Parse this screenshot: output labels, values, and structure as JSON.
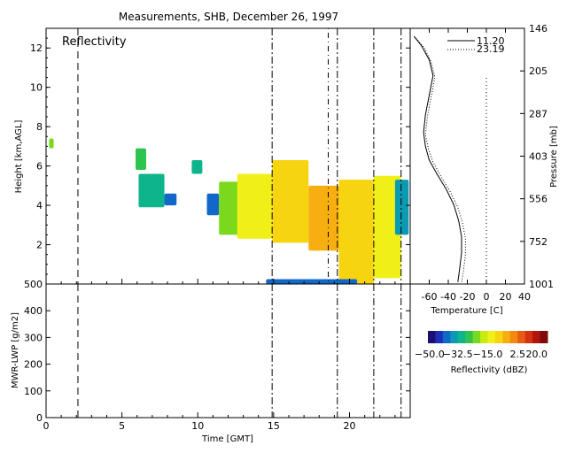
{
  "chart_data": [
    {
      "type": "heatmap",
      "name": "reflectivity-time-height",
      "title": "Measurements, SHB, December 26, 1997",
      "panel_label": "Reflectivity",
      "xlabel": "",
      "ylabel": "Height [km,AGL]",
      "xlim": [
        0,
        24
      ],
      "ylim": [
        0,
        13
      ],
      "x_ticks": [
        0,
        5,
        10,
        15,
        20
      ],
      "y_ticks": [
        2,
        4,
        6,
        8,
        10,
        12
      ],
      "y_tick_labels": [
        "2",
        "4",
        "6",
        "8",
        "10",
        "12"
      ],
      "sounding_times": [
        2.1,
        14.9,
        19.2,
        21.6,
        23.4
      ],
      "dash_dot_time": 18.6,
      "echoes": [
        {
          "x": [
            0.2,
            0.5
          ],
          "y": [
            6.9,
            7.4
          ],
          "dbz": -22
        },
        {
          "x": [
            5.9,
            6.6
          ],
          "y": [
            5.8,
            6.9
          ],
          "dbz": -28
        },
        {
          "x": [
            6.1,
            7.8
          ],
          "y": [
            3.9,
            5.6
          ],
          "dbz": -32
        },
        {
          "x": [
            7.8,
            8.6
          ],
          "y": [
            4.0,
            4.6
          ],
          "dbz": -40
        },
        {
          "x": [
            9.6,
            10.3
          ],
          "y": [
            5.6,
            6.3
          ],
          "dbz": -30
        },
        {
          "x": [
            10.6,
            11.4
          ],
          "y": [
            3.5,
            4.6
          ],
          "dbz": -40
        },
        {
          "x": [
            11.4,
            13.2
          ],
          "y": [
            2.5,
            5.2
          ],
          "dbz": -22
        },
        {
          "x": [
            12.6,
            14.9
          ],
          "y": [
            2.3,
            5.6
          ],
          "dbz": -12
        },
        {
          "x": [
            14.9,
            17.3
          ],
          "y": [
            2.1,
            6.3
          ],
          "dbz": -8
        },
        {
          "x": [
            17.3,
            19.3
          ],
          "y": [
            1.7,
            5.0
          ],
          "dbz": -6
        },
        {
          "x": [
            19.3,
            21.6
          ],
          "y": [
            0.0,
            5.3
          ],
          "dbz": -10
        },
        {
          "x": [
            21.6,
            23.4
          ],
          "y": [
            0.3,
            5.5
          ],
          "dbz": -14
        },
        {
          "x": [
            23.0,
            23.9
          ],
          "y": [
            2.5,
            5.3
          ],
          "dbz": -35
        },
        {
          "x": [
            14.5,
            20.5
          ],
          "y": [
            0.0,
            0.25
          ],
          "dbz": -40
        }
      ]
    },
    {
      "type": "line",
      "name": "temperature-sounding",
      "xlabel": "Temperature [C]",
      "ylabel": "Pressure [mb]",
      "xlim": [
        -80,
        40
      ],
      "x_ticks": [
        -60,
        -40,
        -20,
        0,
        20,
        40
      ],
      "y_ticks": [
        "146",
        "205",
        "287",
        "403",
        "556",
        "752",
        "1001"
      ],
      "series": [
        {
          "name": "11.20",
          "style": "solid",
          "temperature": [
            -76,
            -68,
            -60,
            -56,
            -60,
            -64,
            -66,
            -64,
            -60,
            -52,
            -42,
            -34,
            -29,
            -26,
            -26,
            -28,
            -30
          ],
          "height_km": [
            12.6,
            12.1,
            11.4,
            10.6,
            9.6,
            8.6,
            7.7,
            7.0,
            6.3,
            5.6,
            4.8,
            4.0,
            3.2,
            2.4,
            1.6,
            0.8,
            0.1
          ]
        },
        {
          "name": "23.19",
          "style": "dotted",
          "temperature": [
            -74,
            -65,
            -58,
            -54,
            -58,
            -62,
            -64,
            -61,
            -56,
            -48,
            -38,
            -30,
            -25,
            -22,
            -22,
            -24,
            -26
          ],
          "height_km": [
            12.5,
            12.0,
            11.3,
            10.5,
            9.5,
            8.5,
            7.6,
            6.9,
            6.2,
            5.5,
            4.7,
            3.9,
            3.1,
            2.3,
            1.5,
            0.7,
            0.1
          ]
        }
      ],
      "reference_line_temperature": 0
    },
    {
      "type": "line",
      "name": "liquid-water-path",
      "xlabel": "Time [GMT]",
      "ylabel": "MWR-LWP [g/m2]",
      "xlim": [
        0,
        24
      ],
      "ylim": [
        0,
        500
      ],
      "x_ticks": [
        0,
        5,
        10,
        15,
        20
      ],
      "y_ticks": [
        0,
        100,
        200,
        300,
        400,
        500
      ],
      "sounding_times": [
        2.1,
        14.9,
        19.2,
        21.6,
        23.4
      ]
    },
    {
      "type": "heatmap",
      "name": "reflectivity-colorbar",
      "label": "Reflectivity (dBZ)",
      "range": [
        -50,
        20
      ],
      "tick_labels": [
        "−50.0",
        "−32.5",
        "−15.0",
        "2.5",
        "20.0"
      ],
      "colors": [
        "#1c0f70",
        "#1d2fb8",
        "#1168c8",
        "#0a9bb3",
        "#0eb48c",
        "#2ec44f",
        "#7ad91c",
        "#c6ec10",
        "#f0f018",
        "#f6d410",
        "#f7ae10",
        "#f48810",
        "#e65c10",
        "#d43210",
        "#b41410",
        "#7f0a08"
      ]
    }
  ]
}
